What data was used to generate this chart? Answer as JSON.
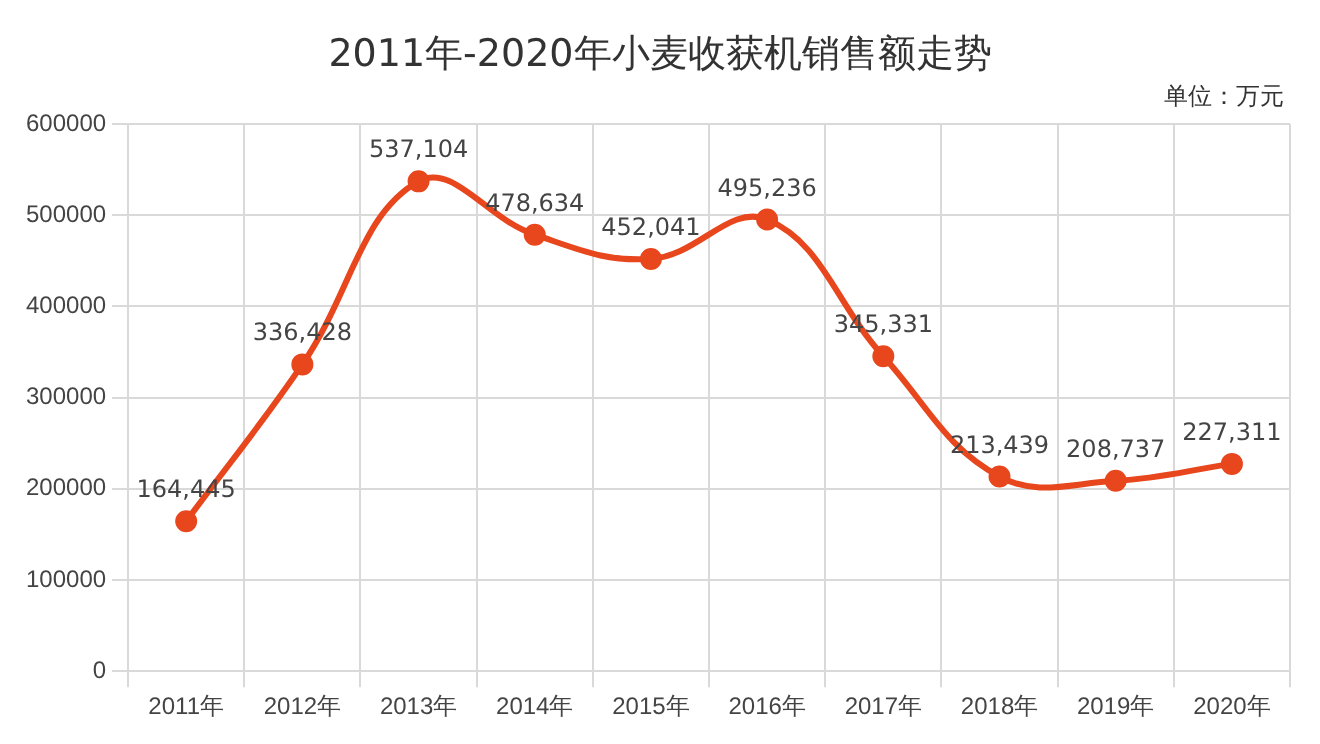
{
  "chart_data": {
    "type": "line",
    "title": "2011年-2020年小麦收获机销售额走势",
    "annotations": [
      "单位：万元"
    ],
    "categories": [
      "2011年",
      "2012年",
      "2013年",
      "2014年",
      "2015年",
      "2016年",
      "2017年",
      "2018年",
      "2019年",
      "2020年"
    ],
    "series": [
      {
        "color": "#e8461c",
        "values": [
          164445,
          336428,
          537104,
          478634,
          452041,
          495236,
          345331,
          213439,
          208737,
          227311
        ],
        "value_labels": [
          "164,445",
          "336,428",
          "537,104",
          "478,634",
          "452,041",
          "495,236",
          "345,331",
          "213,439",
          "208,737",
          "227,311"
        ]
      }
    ],
    "ylim": [
      0,
      600000
    ],
    "yticks": [
      0,
      100000,
      200000,
      300000,
      400000,
      500000,
      600000
    ],
    "grid": true,
    "legend": false,
    "marker": "circle",
    "line_style": "solid"
  }
}
